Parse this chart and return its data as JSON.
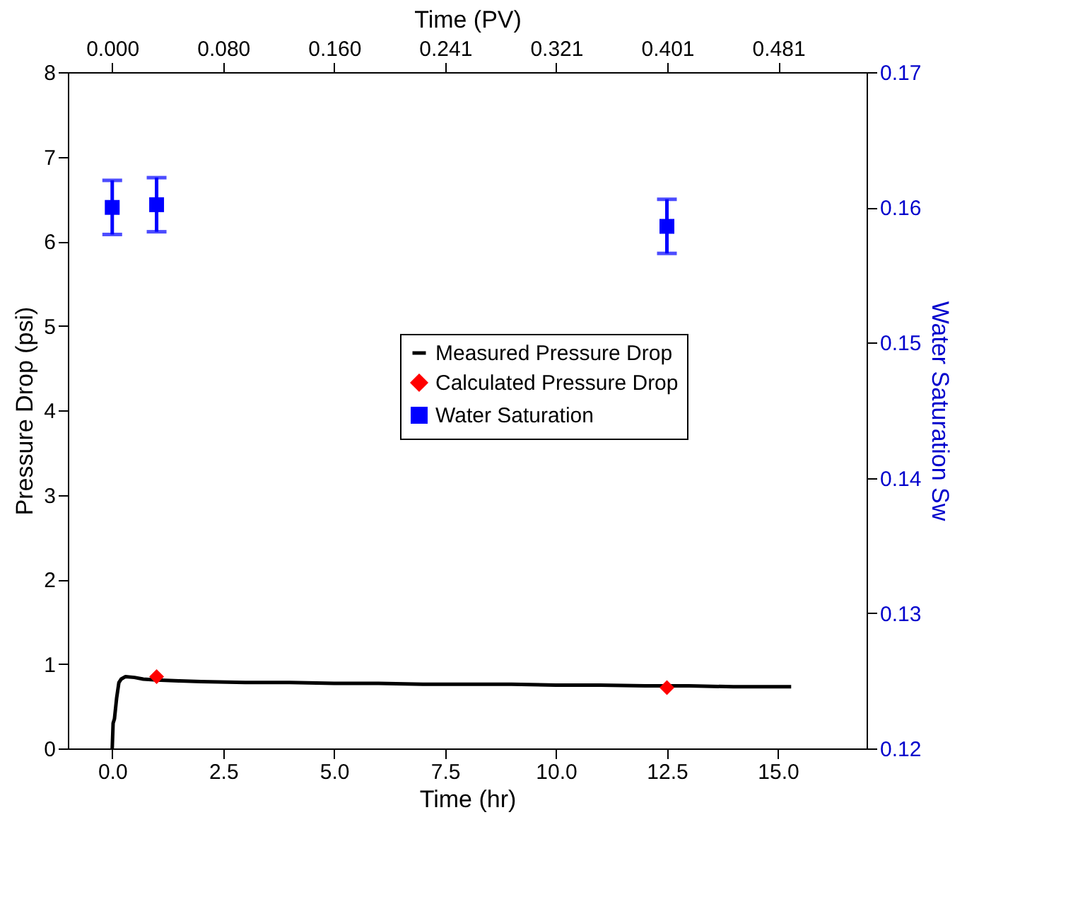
{
  "chart_data": {
    "type": "line",
    "xlabel": "Time (hr)",
    "ylabel": "Pressure Drop (psi)",
    "y2label": "Water Saturation Sw",
    "x2label": "Time (PV)",
    "xlim": [
      -1,
      17
    ],
    "xticks": [
      {
        "value": 0,
        "label": "0.0"
      },
      2.5,
      {
        "value": 5,
        "label": "5.0"
      },
      7.5,
      {
        "value": 10,
        "label": "10.0"
      },
      12.5,
      {
        "value": 15,
        "label": "15.0"
      }
    ],
    "x2lim": [
      -0.032,
      0.545
    ],
    "x2ticks": [
      {
        "value": 0,
        "label": "0.000"
      },
      {
        "value": 0.0802,
        "label": "0.080"
      },
      {
        "value": 0.1604,
        "label": "0.160"
      },
      {
        "value": 0.2406,
        "label": "0.241"
      },
      {
        "value": 0.3208,
        "label": "0.321"
      },
      {
        "value": 0.401,
        "label": "0.401"
      },
      {
        "value": 0.4812,
        "label": "0.481"
      }
    ],
    "ylim": [
      0,
      8
    ],
    "yticks": [
      0,
      1,
      2,
      3,
      4,
      5,
      6,
      7,
      8
    ],
    "y2lim": [
      0.12,
      0.17
    ],
    "y2ticks": [
      0.12,
      0.13,
      0.14,
      0.15,
      0.16,
      0.17
    ],
    "grid": false,
    "legend": "right",
    "series": [
      {
        "name": "Measured Pressure Drop",
        "type": "line",
        "color": "#000000",
        "marker": "none",
        "x": [
          0,
          0.02,
          0.05,
          0.1,
          0.15,
          0.2,
          0.3,
          0.5,
          0.7,
          1.0,
          1.5,
          2,
          3,
          4,
          5,
          6,
          7,
          8,
          9,
          10,
          11,
          12,
          13,
          14,
          15.3
        ],
        "values": [
          0,
          0.3,
          0.35,
          0.6,
          0.78,
          0.82,
          0.85,
          0.84,
          0.82,
          0.81,
          0.8,
          0.79,
          0.78,
          0.78,
          0.77,
          0.77,
          0.76,
          0.76,
          0.76,
          0.75,
          0.75,
          0.74,
          0.74,
          0.73,
          0.73
        ]
      },
      {
        "name": "Calculated Pressure Drop",
        "type": "scatter",
        "color": "#ff0000",
        "marker": "diamond",
        "x": [
          1.0,
          12.5
        ],
        "values": [
          0.85,
          0.72
        ]
      },
      {
        "name": "Water Saturation",
        "type": "scatter",
        "color": "#0000ff",
        "marker": "square",
        "axis": "y2",
        "x": [
          0,
          1.0,
          12.5
        ],
        "values": [
          0.16,
          0.1602,
          0.1586
        ],
        "errors": [
          0.002,
          0.002,
          0.002
        ]
      }
    ]
  }
}
